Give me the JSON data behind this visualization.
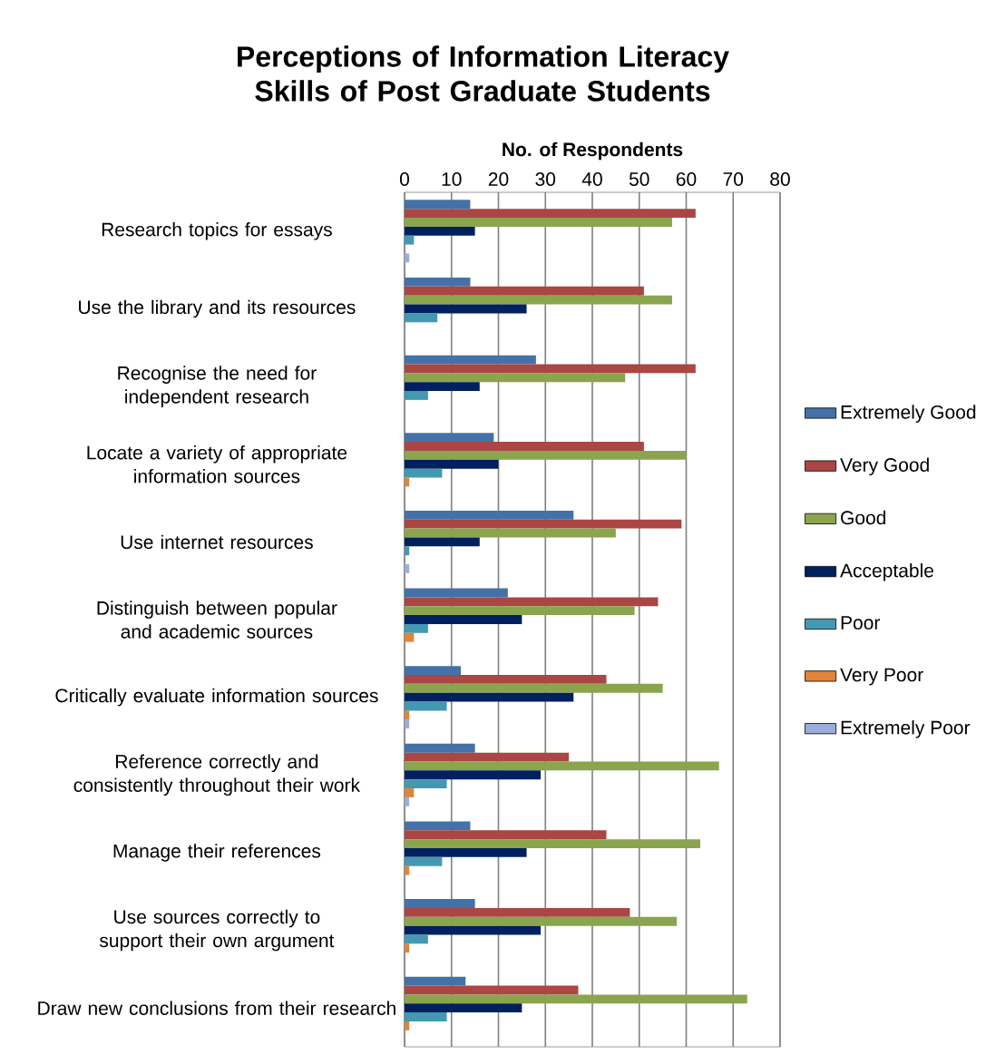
{
  "chart_data": {
    "type": "bar",
    "orientation": "horizontal",
    "title": "Perceptions of Information Literacy Skills of Post Graduate Students",
    "xlabel": "No. of Respondents",
    "categories": [
      "Research topics for essays",
      "Use the library and its resources",
      "Recognise the need for independent research",
      "Locate a variety of appropriate information sources",
      "Use internet resources",
      "Distinguish between popular and academic sources",
      "Critically evaluate information sources",
      "Reference correctly and consistently throughout their work",
      "Manage their references",
      "Use sources correctly to support their own argument",
      "Draw new conclusions from their research"
    ],
    "series": [
      {
        "name": "Extremely Good",
        "color": "#4472a8",
        "values": [
          14,
          14,
          28,
          19,
          36,
          22,
          12,
          15,
          14,
          15,
          13
        ]
      },
      {
        "name": "Very Good",
        "color": "#aa4644",
        "values": [
          62,
          51,
          62,
          51,
          59,
          54,
          43,
          35,
          43,
          48,
          37
        ]
      },
      {
        "name": "Good",
        "color": "#8aa54e",
        "values": [
          57,
          57,
          47,
          60,
          45,
          49,
          55,
          67,
          63,
          58,
          73
        ]
      },
      {
        "name": "Acceptable",
        "color": "#002060",
        "values": [
          15,
          26,
          16,
          20,
          16,
          25,
          36,
          29,
          26,
          29,
          25
        ]
      },
      {
        "name": "Poor",
        "color": "#4399b2",
        "values": [
          2,
          7,
          5,
          8,
          1,
          5,
          9,
          9,
          8,
          5,
          9
        ]
      },
      {
        "name": "Very Poor",
        "color": "#e0843c",
        "values": [
          null,
          null,
          null,
          1,
          null,
          2,
          1,
          2,
          1,
          1,
          1
        ]
      },
      {
        "name": "Extremely Poor",
        "color": "#9aaedb",
        "values": [
          1,
          null,
          null,
          null,
          1,
          null,
          1,
          1,
          null,
          null,
          null
        ]
      }
    ],
    "xlim": [
      0,
      80
    ],
    "xticks": [
      0,
      10,
      20,
      30,
      40,
      50,
      60,
      70,
      80
    ],
    "grid": "x",
    "legend": "right"
  }
}
